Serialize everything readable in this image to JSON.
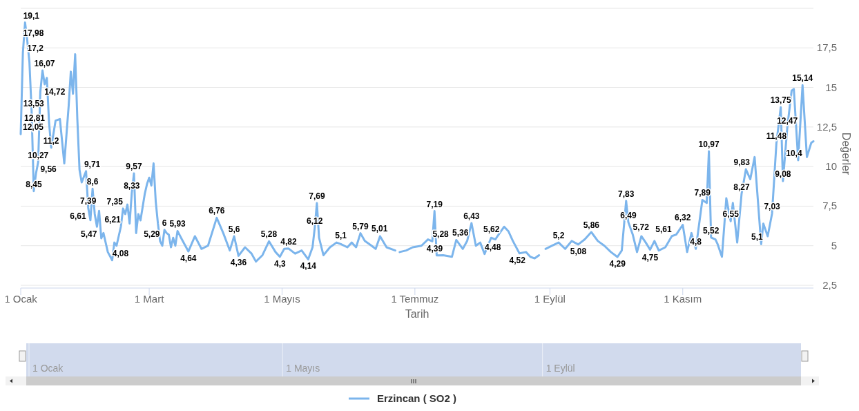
{
  "chart_data": {
    "type": "line",
    "xlabel": "Tarih",
    "ylabel": "Değerler",
    "xlim": [
      "--01-01",
      "--12-31"
    ],
    "xticks": [
      {
        "value": "--01-01",
        "label": "1 Ocak"
      },
      {
        "value": "--03-01",
        "label": "1 Mart"
      },
      {
        "value": "--05-01",
        "label": "1 Mayıs"
      },
      {
        "value": "--07-01",
        "label": "1 Temmuz"
      },
      {
        "value": "--09-01",
        "label": "1 Eylül"
      },
      {
        "value": "--11-01",
        "label": "1 Kasım"
      }
    ],
    "ylim": [
      2.5,
      20
    ],
    "yticks": [
      {
        "value": 2.5,
        "label": "2,5"
      },
      {
        "value": 5,
        "label": "5"
      },
      {
        "value": 7.5,
        "label": "7,5"
      },
      {
        "value": 10,
        "label": "10"
      },
      {
        "value": 12.5,
        "label": "12,5"
      },
      {
        "value": 15,
        "label": "15"
      },
      {
        "value": 17.5,
        "label": "17,5"
      },
      {
        "value": 20,
        "label": null
      }
    ],
    "grid": "y",
    "legend": "bottom",
    "x": [
      "--01-01",
      "--01-02",
      "--01-03",
      "--01-04",
      "--01-05",
      "--01-06",
      "--01-07",
      "--01-08",
      "--01-09",
      "--01-10",
      "--01-11",
      "--01-12",
      "--01-13",
      "--01-14",
      "--01-15",
      "--01-17",
      "--01-19",
      "--01-21",
      "--01-23",
      "--01-24",
      "--01-25",
      "--01-26",
      "--01-27",
      "--01-28",
      "--01-29",
      "--01-31",
      "--02-01",
      "--02-02",
      "--02-03",
      "--02-04",
      "--02-05",
      "--02-06",
      "--02-07",
      "--02-08",
      "--02-10",
      "--02-12",
      "--02-13",
      "--02-14",
      "--02-16",
      "--02-17",
      "--02-18",
      "--02-19",
      "--02-20",
      "--02-21",
      "--02-22",
      "--02-23",
      "--02-24",
      "--02-25",
      "--02-27",
      "--02-28",
      "--03-01",
      "--03-02",
      "--03-03",
      "--03-04",
      "--03-05",
      "--03-06",
      "--03-07",
      "--03-08",
      "--03-09",
      "--03-10",
      "--03-11",
      "--03-12",
      "--03-13",
      "--03-14",
      "--03-16",
      "--03-19",
      "--03-22",
      "--03-25",
      "--03-28",
      "--04-01",
      "--04-04",
      "--04-07",
      "--04-09",
      "--04-11",
      "--04-14",
      "--04-17",
      "--04-19",
      "--04-22",
      "--04-25",
      "--04-28",
      "--04-30",
      "--05-02",
      "--05-04",
      "--05-07",
      "--05-10",
      "--05-13",
      "--05-15",
      "--05-16",
      "--05-17",
      "--05-18",
      "--05-20",
      "--05-23",
      "--05-26",
      "--05-28",
      "--05-31",
      "--06-02",
      "--06-04",
      "--06-06",
      "--06-08",
      "--06-11",
      "--06-13",
      "--06-15",
      "--06-18",
      "--06-22",
      "--06-23",
      "--06-24",
      "--06-27",
      "--06-30",
      "--07-04",
      "--07-07",
      "--07-09",
      "--07-10",
      "--07-11",
      "--07-14",
      "--07-18",
      "--07-20",
      "--07-23",
      "--07-25",
      "--07-27",
      "--07-29",
      "--07-31",
      "--08-02",
      "--08-05",
      "--08-07",
      "--08-08",
      "--08-11",
      "--08-13",
      "--08-15",
      "--08-18",
      "--08-21",
      "--08-23",
      "--08-25",
      "--08-27",
      "--08-28",
      "--08-30",
      "--09-02",
      "--09-05",
      "--09-08",
      "--09-11",
      "--09-14",
      "--09-17",
      "--09-20",
      "--09-23",
      "--09-26",
      "--09-29",
      "--10-02",
      "--10-04",
      "--10-06",
      "--10-07",
      "--10-09",
      "--10-11",
      "--10-13",
      "--10-15",
      "--10-17",
      "--10-19",
      "--10-21",
      "--10-24",
      "--10-27",
      "--10-29",
      "--11-01",
      "--11-03",
      "--11-05",
      "--11-07",
      "--11-10",
      "--11-12",
      "--11-13",
      "--11-14",
      "--11-16",
      "--11-17",
      "--11-19",
      "--11-21",
      "--11-23",
      "--11-24",
      "--11-26",
      "--11-28",
      "--11-30",
      "--12-02",
      "--12-04",
      "--12-07",
      "--12-08",
      "--12-10",
      "--12-12",
      "--12-14",
      "--12-16",
      "--12-17",
      "--12-19",
      "--12-21",
      "--12-22",
      "--12-24",
      "--12-26",
      "--12-28",
      "--12-30",
      "--12-31"
    ],
    "series": [
      {
        "name": "Erzincan ( SO2 )",
        "color": "#7cb5ec",
        "values": [
          12.05,
          17.2,
          19.1,
          17.98,
          16.6,
          13.53,
          8.45,
          9.56,
          10.27,
          14.72,
          16.07,
          15.2,
          15.6,
          12.81,
          11.2,
          12.9,
          13.0,
          10.2,
          13.8,
          16.0,
          14.6,
          17.1,
          13.0,
          9.8,
          9.0,
          9.71,
          7.39,
          6.61,
          8.6,
          7.0,
          6.2,
          7.2,
          5.47,
          5.8,
          4.6,
          4.08,
          5.2,
          5.0,
          6.21,
          7.35,
          7.0,
          7.6,
          6.4,
          8.33,
          9.57,
          5.8,
          7.0,
          6.6,
          8.3,
          8.9,
          9.3,
          8.8,
          10.2,
          7.8,
          6.4,
          5.29,
          5.0,
          6,
          5.8,
          5.7,
          4.9,
          5.5,
          5.0,
          5.93,
          5.4,
          4.64,
          5.6,
          4.8,
          5.0,
          6.76,
          5.8,
          4.7,
          5.6,
          4.36,
          4.9,
          4.5,
          4.0,
          4.4,
          5.28,
          4.6,
          4.3,
          4.8,
          4.82,
          4.5,
          4.7,
          4.14,
          4.9,
          6.12,
          7.69,
          5.5,
          4.4,
          4.9,
          5.2,
          5.1,
          4.9,
          5.2,
          4.9,
          5.79,
          5.3,
          5.01,
          4.8,
          5.6,
          4.9,
          4.7,
          null,
          4.6,
          4.7,
          4.9,
          5.0,
          5.4,
          5.28,
          7.19,
          4.39,
          4.4,
          4.3,
          5.36,
          4.8,
          5.3,
          6.43,
          5.0,
          5.2,
          4.48,
          5.5,
          5.4,
          5.62,
          6.2,
          5.9,
          5.3,
          4.52,
          4.6,
          4.3,
          4.2,
          4.4,
          null,
          4.8,
          5.0,
          5.2,
          4.8,
          5.3,
          5.08,
          5.4,
          5.86,
          5.3,
          5.0,
          4.6,
          4.29,
          4.7,
          7.83,
          6.49,
          5.72,
          4.6,
          5.6,
          5.2,
          4.75,
          5.3,
          4.7,
          4.9,
          5.61,
          5.7,
          6.32,
          4.6,
          5.8,
          4.8,
          7.89,
          7.7,
          10.97,
          5.52,
          5.4,
          5.1,
          4.3,
          8.0,
          6.55,
          7.7,
          5.2,
          8.27,
          9.83,
          9.2,
          10.6,
          5.1,
          6.4,
          5.6,
          7.03,
          11.48,
          13.75,
          9.08,
          12.47,
          14.8,
          14.9,
          10.4,
          15.14,
          10.6,
          11.5,
          11.6
        ],
        "value_labels": [
          "12,05",
          "17,2",
          "19,1",
          "17,98",
          null,
          "13,53",
          "8,45",
          "9,56",
          "10,27",
          "14,72",
          "16,07",
          null,
          null,
          "12,81",
          "11,2",
          null,
          null,
          null,
          null,
          null,
          null,
          null,
          null,
          null,
          null,
          "9,71",
          "7,39",
          "6,61",
          "8,6",
          null,
          null,
          null,
          "5,47",
          null,
          null,
          "4,08",
          null,
          null,
          "6,21",
          "7,35",
          null,
          null,
          null,
          "8,33",
          "9,57",
          null,
          null,
          null,
          null,
          null,
          null,
          null,
          null,
          null,
          null,
          "5,29",
          null,
          "6",
          null,
          null,
          null,
          null,
          null,
          "5,93",
          null,
          "4,64",
          null,
          null,
          null,
          "6,76",
          null,
          null,
          "5,6",
          "4,36",
          null,
          null,
          null,
          null,
          "5,28",
          null,
          "4,3",
          null,
          "4,82",
          null,
          null,
          "4,14",
          null,
          "6,12",
          "7,69",
          null,
          null,
          null,
          null,
          "5,1",
          null,
          null,
          null,
          "5,79",
          null,
          "5,01",
          null,
          null,
          null,
          null,
          null,
          null,
          null,
          null,
          null,
          null,
          "5,28",
          "7,19",
          "4,39",
          null,
          null,
          "5,36",
          null,
          null,
          "6,43",
          null,
          null,
          "4,48",
          null,
          null,
          "5,62",
          null,
          null,
          null,
          "4,52",
          null,
          null,
          null,
          null,
          null,
          null,
          null,
          "5,2",
          null,
          null,
          "5,08",
          null,
          "5,86",
          null,
          null,
          null,
          "4,29",
          null,
          "7,83",
          "6,49",
          "5,72",
          null,
          null,
          null,
          "4,75",
          null,
          null,
          null,
          "5,61",
          null,
          "6,32",
          null,
          null,
          "4,8",
          "7,89",
          null,
          "10,97",
          "5,52",
          null,
          null,
          null,
          null,
          "6,55",
          null,
          null,
          "8,27",
          "9,83",
          null,
          null,
          "5,1",
          null,
          null,
          "7,03",
          "11,48",
          "13,75",
          "9,08",
          "12,47",
          null,
          null,
          "10,4",
          "15,14",
          null,
          null,
          null
        ]
      }
    ]
  }
}
